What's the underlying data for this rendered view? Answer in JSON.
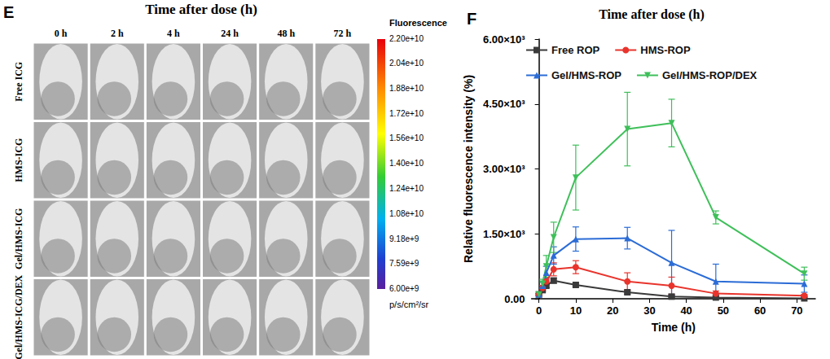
{
  "panel_e": {
    "letter": "E",
    "title": "Time after dose (h)",
    "columns": [
      "0 h",
      "2 h",
      "4 h",
      "24 h",
      "48 h",
      "72 h"
    ],
    "rows": [
      "Free ICG",
      "HMS-ICG",
      "Gel/HMS-ICG",
      "Gel/HMS-ICG/DEX"
    ],
    "colorbar": {
      "title": "Fluorescence",
      "unit": "p/s/cm²/sr",
      "range": [
        6000000000,
        22000000000
      ],
      "ticks": [
        {
          "value": 22000000000,
          "label": "2.20e+10"
        },
        {
          "value": 20400000000,
          "label": "2.04e+10"
        },
        {
          "value": 18800000000,
          "label": "1.88e+10"
        },
        {
          "value": 17200000000,
          "label": "1.72e+10"
        },
        {
          "value": 15600000000,
          "label": "1.56e+10"
        },
        {
          "value": 14000000000,
          "label": "1.40e+10"
        },
        {
          "value": 12400000000,
          "label": "1.24e+10"
        },
        {
          "value": 10800000000,
          "label": "1.08e+10"
        },
        {
          "value": 9180000000,
          "label": "9.18e+9"
        },
        {
          "value": 7590000000,
          "label": "7.59e+9"
        },
        {
          "value": 6000000000,
          "label": "6.00e+9"
        }
      ]
    }
  },
  "chart_data": {
    "letter": "F",
    "type": "line",
    "title": "Time after dose (h)",
    "x_label": "Time (h)",
    "y_label": "Relative fluorescence intensity (%)",
    "x": [
      0,
      1,
      2,
      4,
      10,
      24,
      36,
      48,
      72
    ],
    "series": [
      {
        "name": "Free ROP",
        "color": "#3a3a3a",
        "marker": "square",
        "values": [
          100,
          200,
          300,
          420,
          320,
          150,
          50,
          30,
          10
        ],
        "errors": [
          20,
          30,
          40,
          60,
          40,
          40,
          20,
          10,
          5
        ]
      },
      {
        "name": "HMS-ROP",
        "color": "#e8342c",
        "marker": "circle",
        "values": [
          100,
          250,
          400,
          680,
          730,
          400,
          300,
          120,
          70
        ],
        "errors": [
          20,
          60,
          80,
          150,
          150,
          200,
          200,
          60,
          30
        ]
      },
      {
        "name": "Gel/HMS-ROP",
        "color": "#2b6cd6",
        "marker": "triangle",
        "values": [
          100,
          300,
          600,
          1000,
          1380,
          1400,
          830,
          400,
          350
        ],
        "errors": [
          20,
          80,
          150,
          200,
          280,
          250,
          750,
          400,
          200
        ]
      },
      {
        "name": "Gel/HMS-ROP/DEX",
        "color": "#3fbf5a",
        "marker": "triangle-down",
        "values": [
          100,
          350,
          750,
          1420,
          2800,
          3920,
          4060,
          1880,
          580
        ],
        "errors": [
          20,
          100,
          250,
          350,
          750,
          850,
          550,
          150,
          150
        ]
      }
    ],
    "xlim": [
      -2,
      75
    ],
    "xticks": [
      0,
      10,
      20,
      30,
      40,
      50,
      60,
      70
    ],
    "ylim": [
      0,
      6000
    ],
    "yticks": [
      {
        "value": 0,
        "label": "0.00"
      },
      {
        "value": 1500,
        "label": "1.50×10³"
      },
      {
        "value": 3000,
        "label": "3.00×10³"
      },
      {
        "value": 4500,
        "label": "4.50×10³"
      },
      {
        "value": 6000,
        "label": "6.00×10³"
      }
    ],
    "legend": "upper left",
    "grid": false
  }
}
